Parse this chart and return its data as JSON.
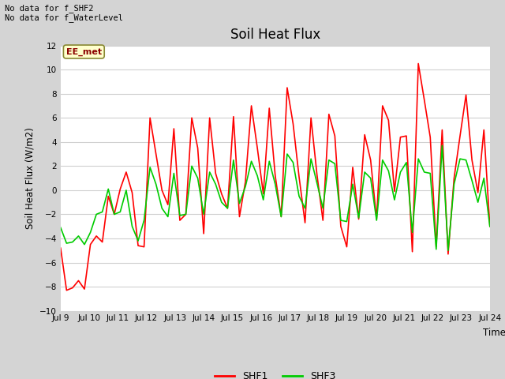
{
  "title": "Soil Heat Flux",
  "xlabel": "Time",
  "ylabel": "Soil Heat Flux (W/m2)",
  "ylim": [
    -10,
    12
  ],
  "yticks": [
    -10,
    -8,
    -6,
    -4,
    -2,
    0,
    2,
    4,
    6,
    8,
    10,
    12
  ],
  "xtick_labels": [
    "Jul 9",
    "Jul 10",
    "Jul 11",
    "Jul 12",
    "Jul 13",
    "Jul 14",
    "Jul 15",
    "Jul 16",
    "Jul 17",
    "Jul 18",
    "Jul 19",
    "Jul 20",
    "Jul 21",
    "Jul 22",
    "Jul 23",
    "Jul 24"
  ],
  "annotation_top": "No data for f_SHF2\nNo data for f_WaterLevel",
  "box_label": "EE_met",
  "shf1_color": "#ff0000",
  "shf3_color": "#00cc00",
  "fig_bg": "#d4d4d4",
  "plot_bg": "#ffffff",
  "grid_color": "#d0d0d0",
  "shf1": [
    -4.8,
    -8.3,
    -8.1,
    -7.5,
    -8.2,
    -4.5,
    -3.8,
    -4.3,
    -0.5,
    -2.0,
    0.1,
    1.5,
    -0.2,
    -4.6,
    -4.7,
    6.0,
    3.0,
    0.0,
    -1.2,
    5.1,
    -2.5,
    -2.0,
    6.0,
    3.5,
    -3.6,
    6.0,
    1.4,
    -0.3,
    -1.5,
    6.1,
    -2.2,
    0.7,
    7.0,
    3.5,
    -0.3,
    6.8,
    1.2,
    -2.2,
    8.5,
    5.5,
    1.1,
    -2.7,
    6.0,
    1.3,
    -2.5,
    6.3,
    4.5,
    -3.0,
    -4.7,
    1.9,
    -2.4,
    4.6,
    2.5,
    -2.4,
    7.0,
    5.8,
    -0.1,
    4.4,
    4.5,
    -5.1,
    10.5,
    7.5,
    4.4,
    -4.7,
    5.0,
    -5.3,
    1.0,
    4.5,
    7.9,
    2.5,
    -0.2,
    5.0,
    -3.0
  ],
  "shf3": [
    -3.1,
    -4.4,
    -4.3,
    -3.8,
    -4.5,
    -3.5,
    -2.0,
    -1.8,
    0.1,
    -2.0,
    -1.8,
    0.0,
    -3.0,
    -4.2,
    -2.5,
    1.9,
    0.5,
    -1.5,
    -2.2,
    1.4,
    -2.1,
    -2.0,
    2.0,
    1.0,
    -2.0,
    1.5,
    0.5,
    -1.0,
    -1.5,
    2.5,
    -1.1,
    0.3,
    2.4,
    1.2,
    -0.8,
    2.4,
    0.5,
    -2.2,
    3.0,
    2.3,
    -0.5,
    -1.5,
    2.6,
    0.6,
    -1.5,
    2.5,
    2.2,
    -2.5,
    -2.6,
    0.5,
    -2.3,
    1.5,
    1.0,
    -2.5,
    2.5,
    1.6,
    -0.8,
    1.5,
    2.3,
    -3.5,
    2.6,
    1.5,
    1.4,
    -4.9,
    3.7,
    -5.0,
    0.5,
    2.6,
    2.5,
    0.8,
    -1.0,
    1.0,
    -3.0
  ]
}
